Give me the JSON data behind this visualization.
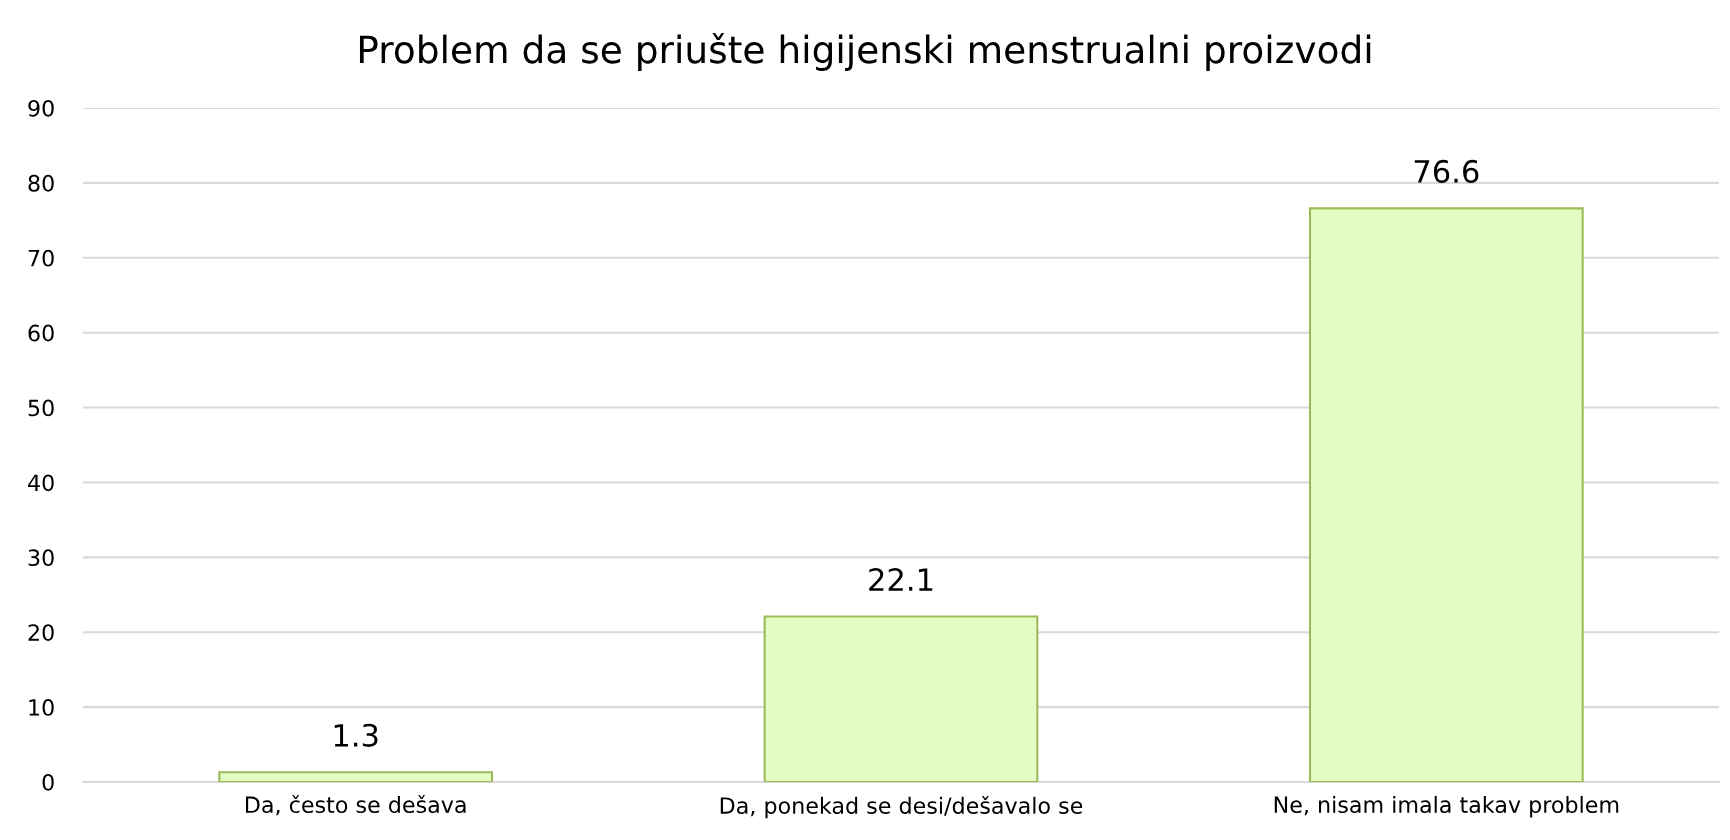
{
  "chart_data": {
    "type": "bar",
    "title": "Problem da se priušte higijenski menstrualni proizvodi",
    "categories": [
      "Da, često se dešava",
      "Da, ponekad se desi/dešavalo se",
      "Ne, nisam imala takav problem"
    ],
    "values": [
      1.3,
      22.1,
      76.6
    ],
    "color": "#e4fbc4",
    "ylim": [
      0,
      90
    ],
    "yticks": [
      0,
      10,
      20,
      30,
      40,
      50,
      60,
      70,
      80,
      90
    ],
    "grid": "y",
    "data_labels": true
  }
}
